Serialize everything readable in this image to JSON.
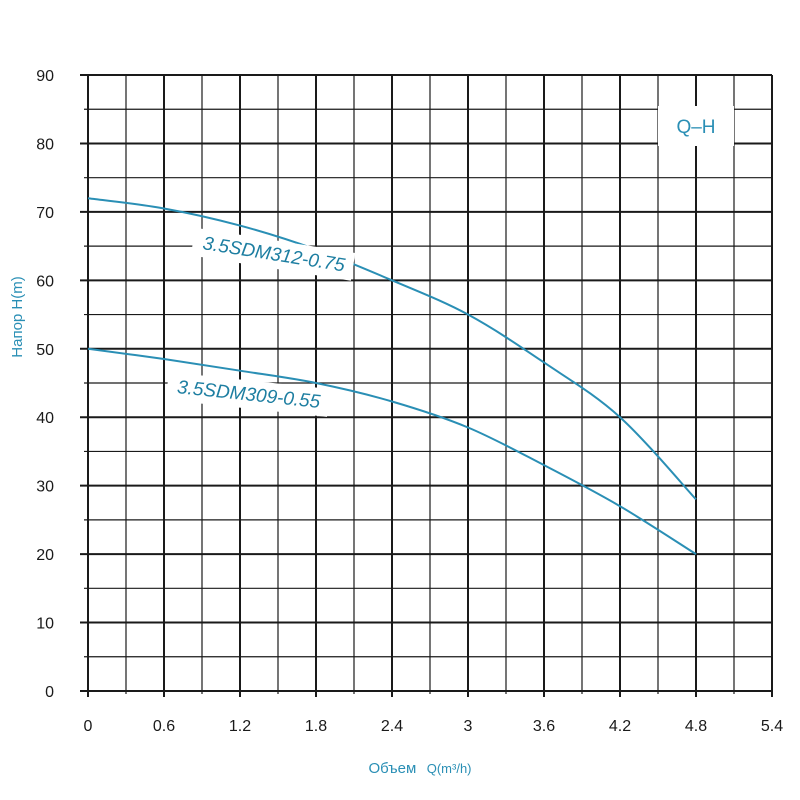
{
  "chart_data": {
    "type": "line",
    "title": "",
    "xlabel": "Объем Q(m³/h)",
    "xlabel_main": "Объем",
    "xlabel_unit": "Q(m³/h)",
    "ylabel": "Напор H(m)",
    "legend": "Q–H",
    "xlim": [
      0,
      5.4
    ],
    "ylim": [
      0,
      90
    ],
    "x_ticks": [
      "0",
      "0.6",
      "1.2",
      "1.8",
      "2.4",
      "3",
      "3.6",
      "4.2",
      "4.8",
      "5.4"
    ],
    "y_ticks": [
      "0",
      "10",
      "20",
      "30",
      "40",
      "50",
      "60",
      "70",
      "80",
      "90"
    ],
    "grid": true,
    "colors": {
      "curve": "#2a8fb5",
      "grid": "#1a1a1a",
      "text": "#2a8fb5"
    },
    "series": [
      {
        "name": "3.5SDM312-0.75",
        "x": [
          0,
          0.6,
          1.2,
          1.8,
          2.4,
          3.0,
          3.6,
          4.2,
          4.8
        ],
        "y": [
          72,
          70.5,
          68,
          64.5,
          60,
          55,
          48,
          40,
          28
        ]
      },
      {
        "name": "3.5SDM309-0.55",
        "x": [
          0,
          0.6,
          1.2,
          1.8,
          2.4,
          3.0,
          3.6,
          4.2,
          4.8
        ],
        "y": [
          50,
          48.5,
          46.8,
          45,
          42.3,
          38.5,
          33,
          27,
          20
        ]
      }
    ]
  }
}
